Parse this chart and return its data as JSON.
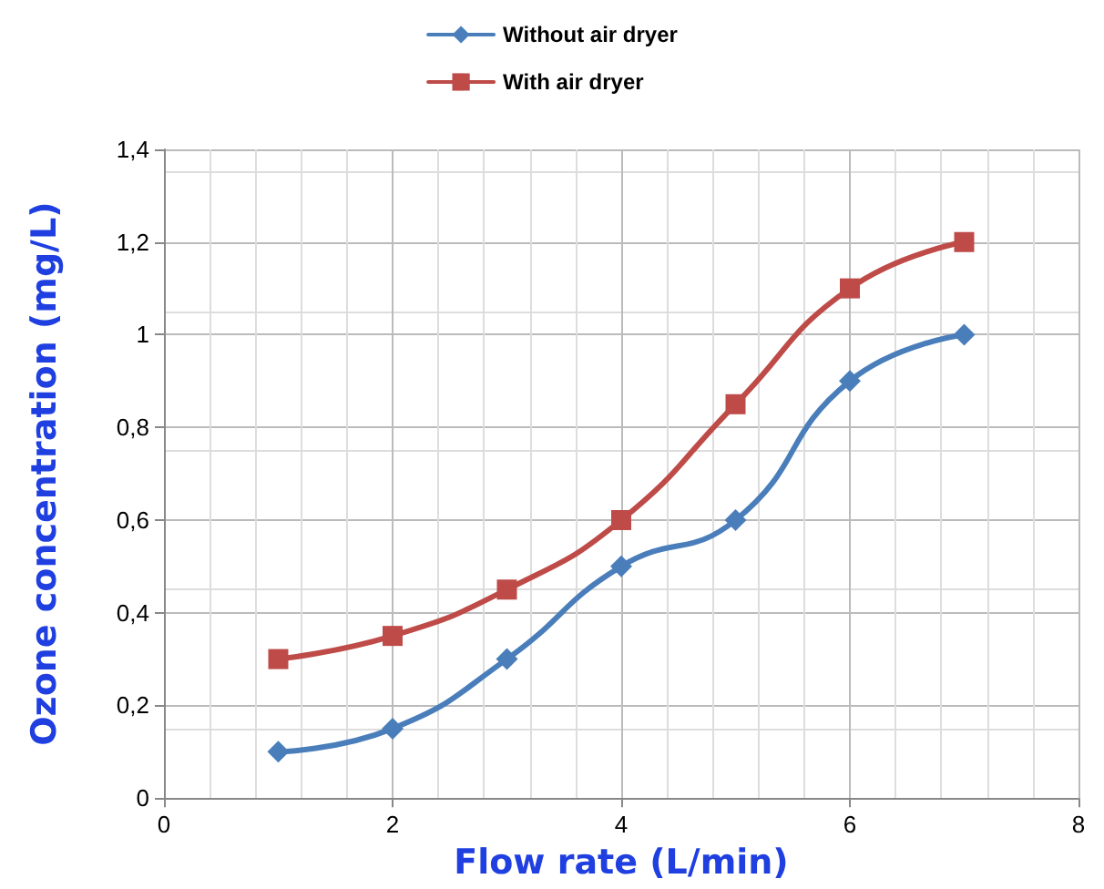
{
  "chart_data": {
    "type": "line",
    "xlabel": "Flow rate (L/min)",
    "ylabel": "Ozone concentration (mg/L)",
    "x": [
      1,
      2,
      3,
      4,
      5,
      6,
      7
    ],
    "series": [
      {
        "name": "Without air dryer",
        "color": "#4a7ebb",
        "marker": "diamond",
        "values": [
          0.1,
          0.15,
          0.3,
          0.5,
          0.6,
          0.9,
          1.0
        ]
      },
      {
        "name": "With air dryer",
        "color": "#be4b48",
        "marker": "square",
        "values": [
          0.3,
          0.35,
          0.45,
          0.6,
          0.85,
          1.1,
          1.2
        ]
      }
    ],
    "xlim": [
      0,
      8
    ],
    "xticks": [
      0,
      2,
      4,
      6,
      8
    ],
    "ylim": [
      0,
      1.4
    ],
    "yticks": [
      0,
      {
        "value": 0.2,
        "label": "0,2"
      },
      {
        "value": 0.4,
        "label": "0,4"
      },
      {
        "value": 0.6,
        "label": "0,6"
      },
      {
        "value": 0.8,
        "label": "0,8"
      },
      1,
      {
        "value": 1.2,
        "label": "1,2"
      },
      {
        "value": 1.4,
        "label": "1,4"
      }
    ],
    "grid": true,
    "legend": "top",
    "line_style": "solid"
  }
}
